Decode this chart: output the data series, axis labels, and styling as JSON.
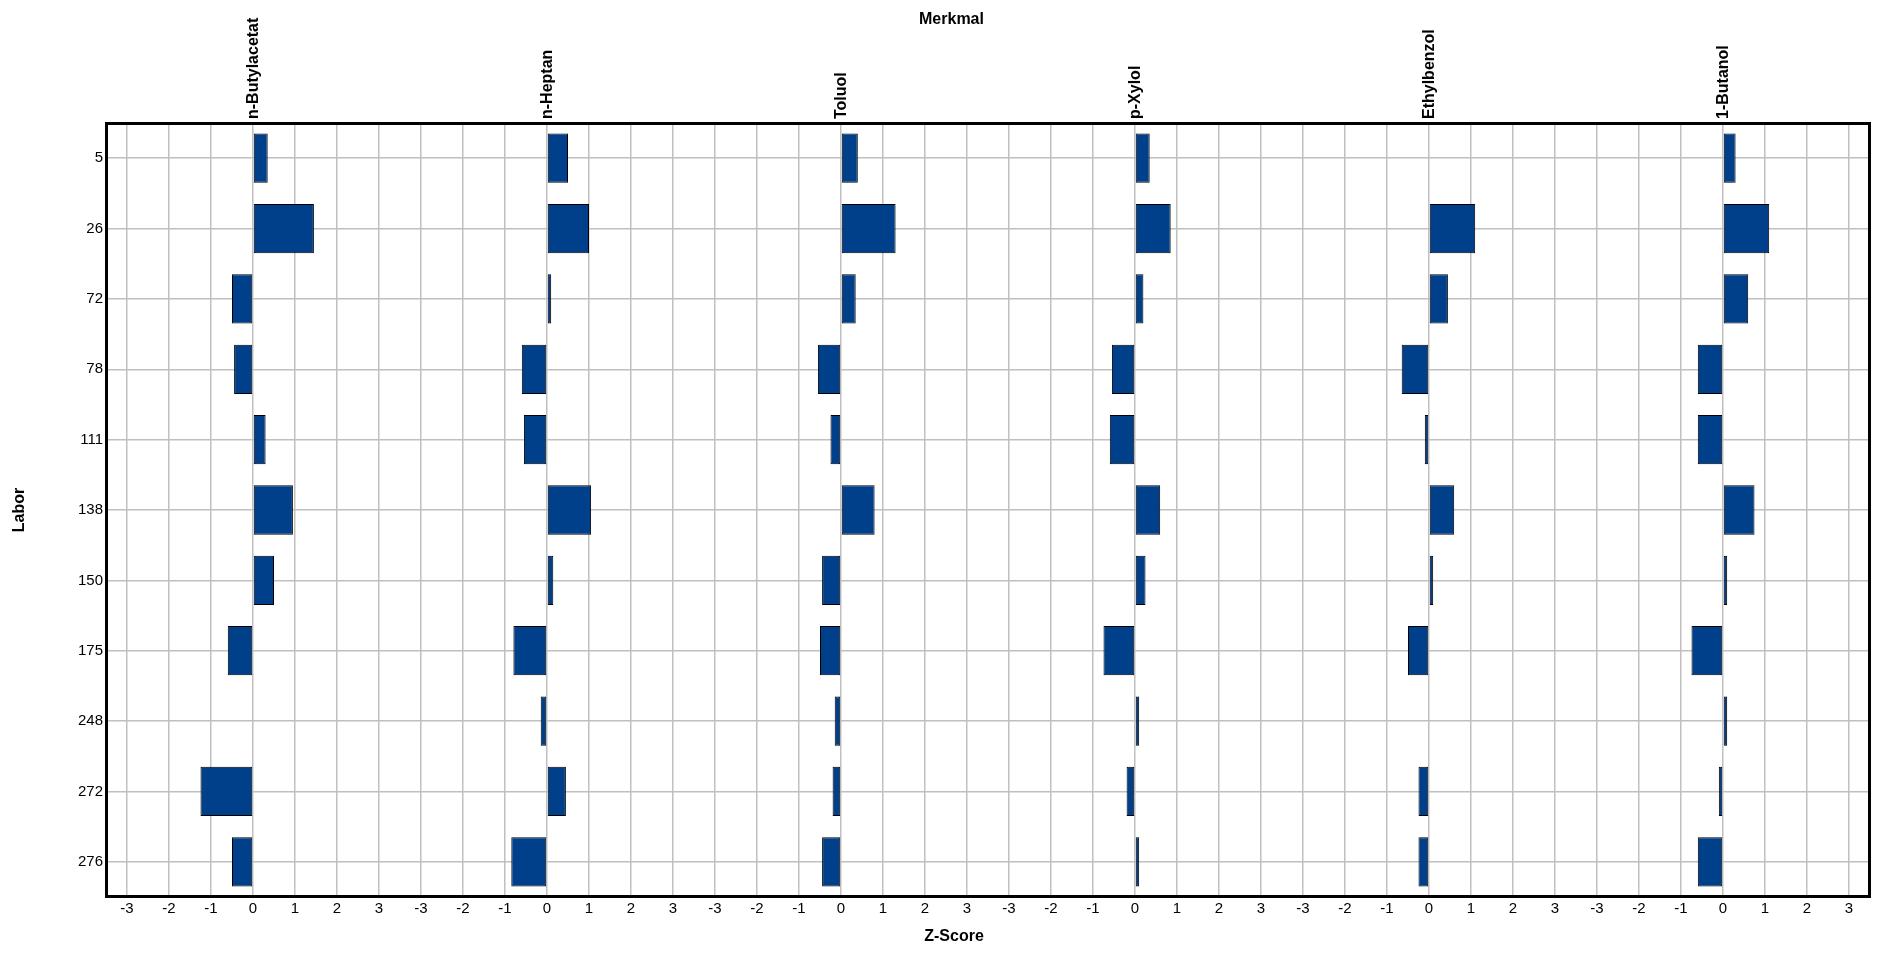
{
  "chart_data": [
    {
      "type": "bar",
      "orientation": "horizontal",
      "title": "n-Butylacetat",
      "ylabel": "Labor",
      "categories": [
        "5",
        "26",
        "72",
        "78",
        "111",
        "138",
        "150",
        "175",
        "248",
        "272",
        "276"
      ],
      "values": [
        0.35,
        1.45,
        -0.5,
        -0.45,
        0.3,
        0.95,
        0.5,
        -0.6,
        0,
        -1.25,
        -0.5
      ],
      "color": "#003f8a",
      "xlim": [
        -3.5,
        3.5
      ],
      "xticks": [
        -3,
        -2,
        -1,
        0,
        1,
        2,
        3
      ],
      "grid": true
    },
    {
      "type": "bar",
      "orientation": "horizontal",
      "title": "n-Heptan",
      "categories": [
        "5",
        "26",
        "72",
        "78",
        "111",
        "138",
        "150",
        "175",
        "248",
        "272",
        "276"
      ],
      "values": [
        0.5,
        1.0,
        0.1,
        -0.6,
        -0.55,
        1.05,
        0.15,
        -0.8,
        -0.15,
        0.45,
        -0.85
      ],
      "color": "#003f8a",
      "xlim": [
        -3.5,
        3.5
      ],
      "xticks": [
        -3,
        -2,
        -1,
        0,
        1,
        2,
        3
      ],
      "grid": true,
      "tick_labels": "x"
    },
    {
      "type": "bar",
      "orientation": "horizontal",
      "title": "Toluol",
      "xlabel": "Z-Score",
      "annotations": [
        "Merkmal"
      ],
      "categories": [
        "5",
        "26",
        "72",
        "78",
        "111",
        "138",
        "150",
        "175",
        "248",
        "272",
        "276"
      ],
      "values": [
        0.4,
        1.3,
        0.35,
        -0.55,
        -0.25,
        0.8,
        -0.45,
        -0.5,
        -0.15,
        -0.2,
        -0.45
      ],
      "color": "#003f8a",
      "xlim": [
        -3.5,
        3.5
      ],
      "xticks": [
        -3,
        -2,
        -1,
        0,
        1,
        2,
        3
      ],
      "grid": true,
      "tick_labels": "x"
    },
    {
      "type": "bar",
      "orientation": "horizontal",
      "title": "p-Xylol",
      "categories": [
        "5",
        "26",
        "72",
        "78",
        "111",
        "138",
        "150",
        "175",
        "248",
        "272",
        "276"
      ],
      "values": [
        0.35,
        0.85,
        0.2,
        -0.55,
        -0.6,
        0.6,
        0.25,
        -0.75,
        0.1,
        -0.2,
        0.1
      ],
      "color": "#003f8a",
      "xlim": [
        -3.5,
        3.5
      ],
      "xticks": [
        -3,
        -2,
        -1,
        0,
        1,
        2,
        3
      ],
      "grid": true,
      "tick_labels": "x"
    },
    {
      "type": "bar",
      "orientation": "horizontal",
      "title": "Ethylbenzol",
      "categories": [
        "5",
        "26",
        "72",
        "78",
        "111",
        "138",
        "150",
        "175",
        "248",
        "272",
        "276"
      ],
      "values": [
        0,
        1.1,
        0.45,
        -0.65,
        -0.1,
        0.6,
        0.1,
        -0.5,
        0,
        -0.25,
        -0.25
      ],
      "color": "#003f8a",
      "xlim": [
        -3.5,
        3.5
      ],
      "xticks": [
        -3,
        -2,
        -1,
        0,
        1,
        2,
        3
      ],
      "grid": true,
      "tick_labels": "x"
    },
    {
      "type": "bar",
      "orientation": "horizontal",
      "title": "1-Butanol",
      "categories": [
        "5",
        "26",
        "72",
        "78",
        "111",
        "138",
        "150",
        "175",
        "248",
        "272",
        "276"
      ],
      "values": [
        0.3,
        1.1,
        0.6,
        -0.6,
        -0.6,
        0.75,
        0.1,
        -0.75,
        0.1,
        -0.1,
        -0.6
      ],
      "color": "#003f8a",
      "xlim": [
        -3.5,
        3.5
      ],
      "xticks": [
        -3,
        -2,
        -1,
        0,
        1,
        2,
        3
      ],
      "grid": true,
      "tick_labels": "x"
    }
  ]
}
